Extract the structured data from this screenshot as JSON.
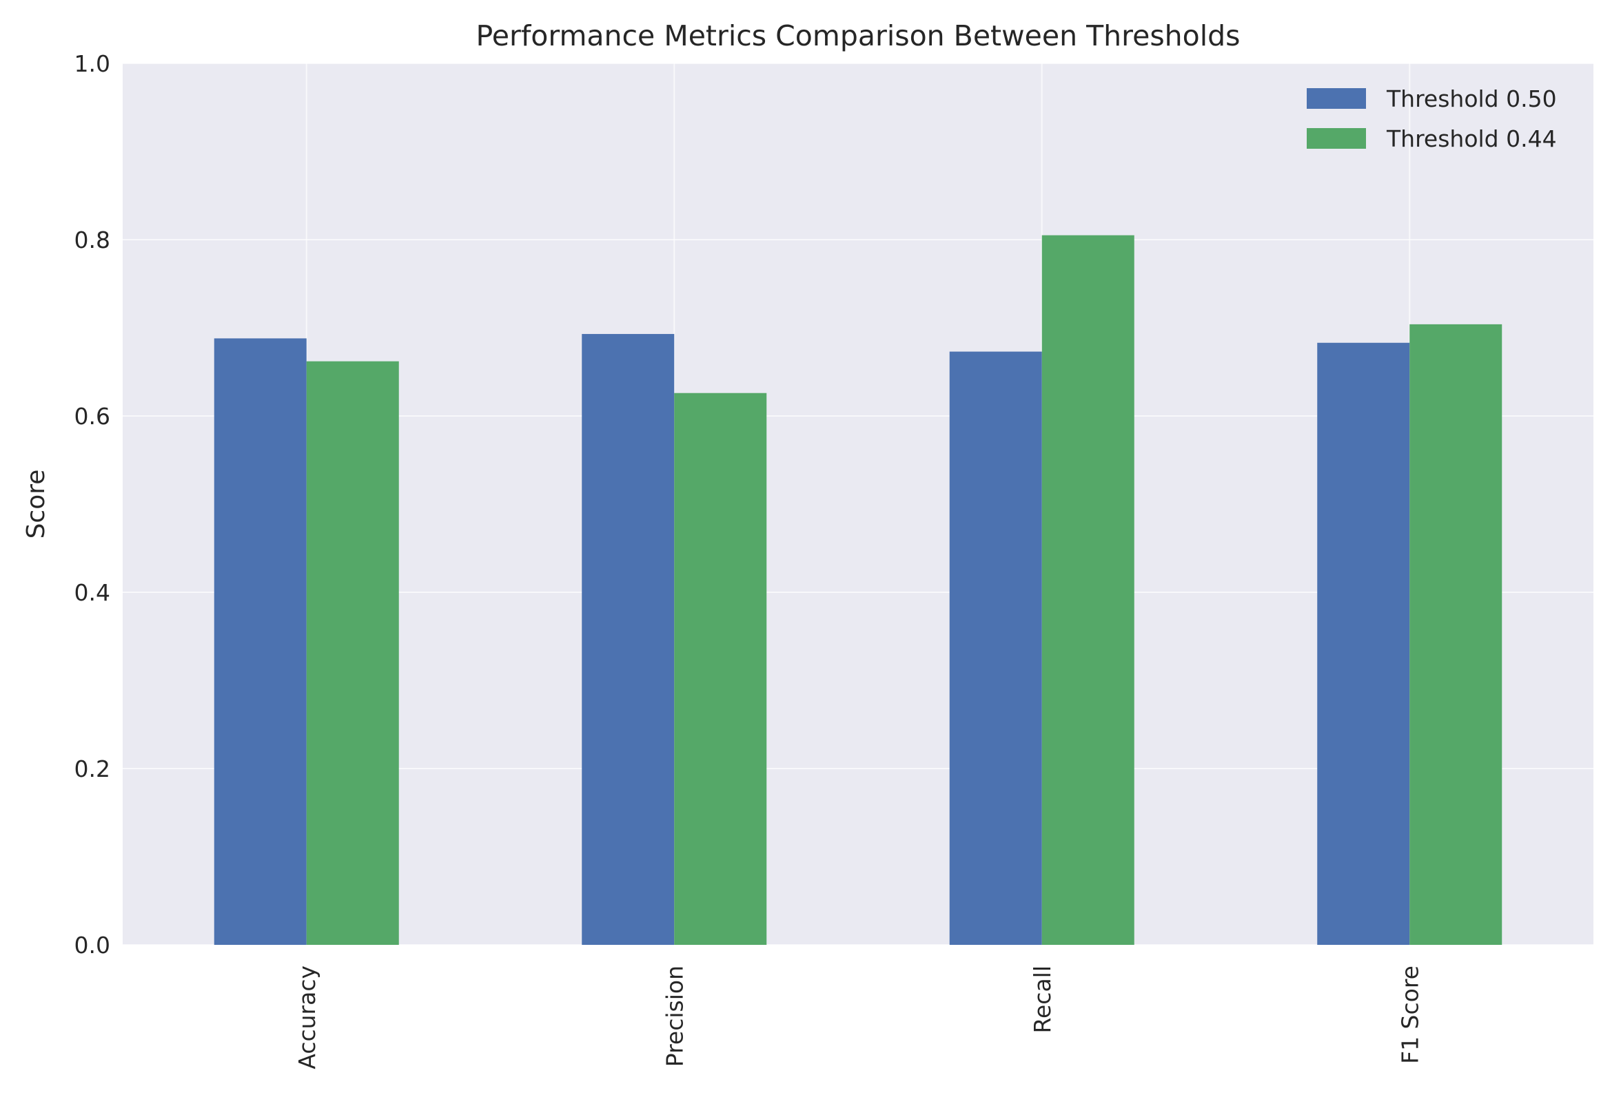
{
  "chart_data": {
    "type": "bar",
    "title": "Performance Metrics Comparison Between Thresholds",
    "xlabel": "",
    "ylabel": "Score",
    "ylim": [
      0,
      1.0
    ],
    "yticks": [
      "0.0",
      "0.2",
      "0.4",
      "0.6",
      "0.8",
      "1.0"
    ],
    "categories": [
      "Accuracy",
      "Precision",
      "Recall",
      "F1 Score"
    ],
    "series": [
      {
        "name": "Threshold 0.50",
        "color": "#4c72b0",
        "values": [
          0.688,
          0.693,
          0.673,
          0.683
        ]
      },
      {
        "name": "Threshold 0.44",
        "color": "#55a868",
        "values": [
          0.662,
          0.626,
          0.805,
          0.704
        ]
      }
    ],
    "grid": true,
    "legend_position": "top-right",
    "background_color": "#eaeaf2",
    "grid_color": "#ffffff"
  }
}
